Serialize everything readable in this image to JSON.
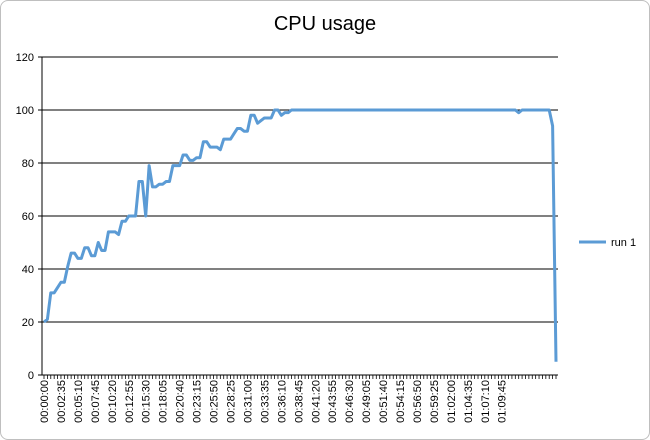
{
  "chart_data": {
    "type": "line",
    "title": "CPU usage",
    "xlabel": "",
    "ylabel": "",
    "ylim": [
      0,
      120
    ],
    "yticks": [
      0,
      20,
      40,
      60,
      80,
      100,
      120
    ],
    "grid": "horizontal",
    "legend_position": "right",
    "line_color": "#5b9bd5",
    "x_tick_labels": [
      "00:00:00",
      "00:02:35",
      "00:05:10",
      "00:07:45",
      "00:10:20",
      "00:12:55",
      "00:15:30",
      "00:18:05",
      "00:20:40",
      "00:23:15",
      "00:25:50",
      "00:28:25",
      "00:31:00",
      "00:33:35",
      "00:36:10",
      "00:38:45",
      "00:41:20",
      "00:43:55",
      "00:46:30",
      "00:49:05",
      "00:51:40",
      "00:54:15",
      "00:56:50",
      "00:59:25",
      "01:02:00",
      "01:04:35",
      "01:07:10",
      "01:09:45"
    ],
    "x_tick_step_samples": 5,
    "series": [
      {
        "name": "run 1",
        "values": [
          20,
          21,
          31,
          31,
          33,
          35,
          35,
          41,
          46,
          46,
          44,
          44,
          48,
          48,
          45,
          45,
          50,
          47,
          47,
          54,
          54,
          54,
          53,
          58,
          58,
          60,
          60,
          60,
          73,
          73,
          60,
          79,
          71,
          71,
          72,
          72,
          73,
          73,
          79,
          79,
          79,
          83,
          83,
          81,
          81,
          82,
          82,
          88,
          88,
          86,
          86,
          86,
          85,
          89,
          89,
          89,
          91,
          93,
          93,
          92,
          92,
          98,
          98,
          95,
          96,
          97,
          97,
          97,
          100,
          100,
          98,
          99,
          99,
          100,
          100,
          100,
          100,
          100,
          100,
          100,
          100,
          100,
          100,
          100,
          100,
          100,
          100,
          100,
          100,
          100,
          100,
          100,
          100,
          100,
          100,
          100,
          100,
          100,
          100,
          100,
          100,
          100,
          100,
          100,
          100,
          100,
          100,
          100,
          100,
          100,
          100,
          100,
          100,
          100,
          100,
          100,
          100,
          100,
          100,
          100,
          100,
          100,
          100,
          100,
          100,
          100,
          100,
          100,
          100,
          100,
          100,
          100,
          100,
          100,
          100,
          100,
          100,
          100,
          100,
          100,
          99,
          100,
          100,
          100,
          100,
          100,
          100,
          100,
          100,
          100,
          94,
          5
        ]
      }
    ]
  }
}
